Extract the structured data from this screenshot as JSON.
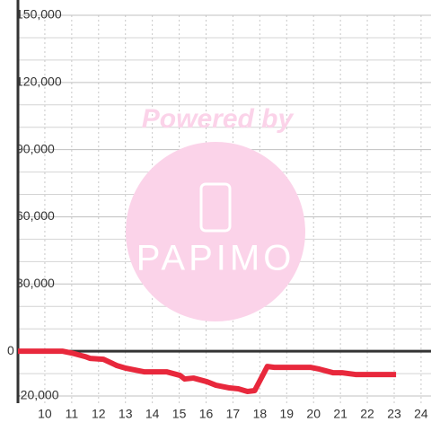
{
  "chart_data": {
    "type": "line",
    "watermark": [
      "Powered by",
      "PAPIMO"
    ],
    "xlim": [
      9,
      24.37
    ],
    "xticks": [
      10,
      11,
      12,
      13,
      14,
      15,
      16,
      17,
      18,
      19,
      20,
      21,
      22,
      23,
      24
    ],
    "ylim": [
      -23200,
      150000
    ],
    "yticks": [
      {
        "value": -20000,
        "label": "-20,000"
      },
      0,
      {
        "value": 30000,
        "label": "30,000"
      },
      {
        "value": 60000,
        "label": "60,000"
      },
      {
        "value": 90000,
        "label": "90,000"
      },
      {
        "value": 120000,
        "label": "120,000"
      },
      {
        "value": 150000,
        "label": "150,000"
      }
    ],
    "yminor_ticks": [
      -10000,
      10000,
      20000,
      40000,
      50000,
      70000,
      80000,
      100000,
      110000,
      130000,
      140000
    ],
    "grid": true,
    "series": [
      {
        "color": "#e8283c",
        "x": [
          9.0,
          10.67,
          11.0,
          11.5,
          11.68,
          12.18,
          12.68,
          13.02,
          13.69,
          14.53,
          15.03,
          15.2,
          15.53,
          16.03,
          16.37,
          16.87,
          17.2,
          17.54,
          17.81,
          18.28,
          18.54,
          19.88,
          20.22,
          20.72,
          21.06,
          21.56,
          23.07
        ],
        "values": [
          0,
          0,
          -800,
          -2400,
          -3200,
          -3600,
          -6400,
          -7600,
          -9200,
          -9200,
          -10800,
          -12400,
          -12000,
          -13600,
          -15200,
          -16400,
          -16800,
          -18000,
          -17600,
          -6800,
          -7200,
          -7200,
          -8000,
          -9600,
          -9600,
          -10400,
          -10400
        ]
      }
    ]
  }
}
